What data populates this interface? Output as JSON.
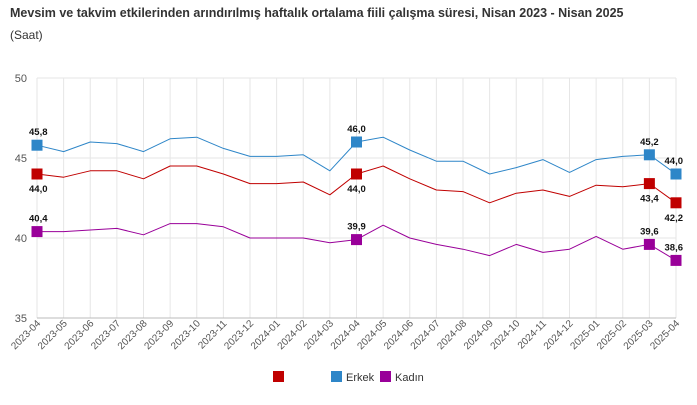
{
  "chart_data": {
    "type": "line",
    "title": "Mevsim ve takvim etkilerinden arındırılmış haftalık ortalama fiili çalışma süresi, Nisan 2023 - Nisan 2025",
    "subtitle": "(Saat)",
    "x": [
      "2023-04",
      "2023-05",
      "2023-06",
      "2023-07",
      "2023-08",
      "2023-09",
      "2023-10",
      "2023-11",
      "2023-12",
      "2024-01",
      "2024-02",
      "2024-03",
      "2024-04",
      "2024-05",
      "2024-06",
      "2024-07",
      "2024-08",
      "2024-09",
      "2024-10",
      "2024-11",
      "2024-12",
      "2025-01",
      "2025-02",
      "2025-03",
      "2025-04"
    ],
    "ylim": [
      35,
      50
    ],
    "yticks": [
      35,
      40,
      45,
      50
    ],
    "grid": true,
    "legend_position": "bottom",
    "series": [
      {
        "name": "",
        "color": "#c00000",
        "values": [
          44.0,
          43.8,
          44.2,
          44.2,
          43.7,
          44.5,
          44.5,
          44.0,
          43.4,
          43.4,
          43.5,
          42.7,
          44.0,
          44.5,
          43.7,
          43.0,
          42.9,
          42.2,
          42.8,
          43.0,
          42.6,
          43.3,
          43.2,
          43.4,
          42.2
        ]
      },
      {
        "name": "Erkek",
        "color": "#2e86c8",
        "values": [
          45.8,
          45.4,
          46.0,
          45.9,
          45.4,
          46.2,
          46.3,
          45.6,
          45.1,
          45.1,
          45.2,
          44.2,
          46.0,
          46.3,
          45.5,
          44.8,
          44.8,
          44.0,
          44.4,
          44.9,
          44.1,
          44.9,
          45.1,
          45.2,
          44.0
        ]
      },
      {
        "name": "Kadın",
        "color": "#990099",
        "values": [
          40.4,
          40.4,
          40.5,
          40.6,
          40.2,
          40.9,
          40.9,
          40.7,
          40.0,
          40.0,
          40.0,
          39.7,
          39.9,
          40.8,
          40.0,
          39.6,
          39.3,
          38.9,
          39.6,
          39.1,
          39.3,
          40.1,
          39.3,
          39.6,
          38.6
        ]
      }
    ],
    "annotations": [
      {
        "series": 1,
        "index": 0,
        "text": "45,8"
      },
      {
        "series": 0,
        "index": 0,
        "text": "44,0"
      },
      {
        "series": 2,
        "index": 0,
        "text": "40,4"
      },
      {
        "series": 1,
        "index": 12,
        "text": "46,0"
      },
      {
        "series": 0,
        "index": 12,
        "text": "44,0"
      },
      {
        "series": 2,
        "index": 12,
        "text": "39,9"
      },
      {
        "series": 1,
        "index": 23,
        "text": "45,2"
      },
      {
        "series": 0,
        "index": 23,
        "text": "43,4"
      },
      {
        "series": 2,
        "index": 23,
        "text": "39,6"
      },
      {
        "series": 1,
        "index": 24,
        "text": "44,0"
      },
      {
        "series": 0,
        "index": 24,
        "text": "42,2"
      },
      {
        "series": 2,
        "index": 24,
        "text": "38,6"
      }
    ]
  }
}
